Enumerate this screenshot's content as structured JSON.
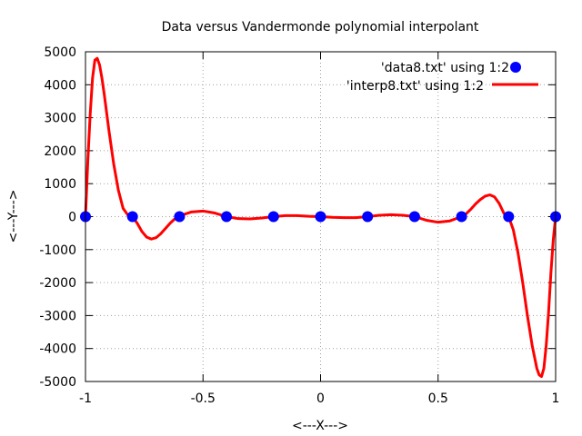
{
  "chart_data": {
    "type": "line",
    "title": "Data versus Vandermonde polynomial interpolant",
    "xlabel": "<---X--->",
    "ylabel": "<---Y--->",
    "xlim": [
      -1,
      1
    ],
    "ylim": [
      -5000,
      5000
    ],
    "xticks": [
      -1,
      -0.5,
      0,
      0.5,
      1
    ],
    "xtick_labels": [
      "-1",
      "-0.5",
      "0",
      "0.5",
      "1"
    ],
    "yticks": [
      -5000,
      -4000,
      -3000,
      -2000,
      -1000,
      0,
      1000,
      2000,
      3000,
      4000,
      5000
    ],
    "ytick_labels": [
      "-5000",
      "-4000",
      "-3000",
      "-2000",
      "-1000",
      "0",
      "1000",
      "2000",
      "3000",
      "4000",
      "5000"
    ],
    "grid": true,
    "legend_position": "top-right",
    "series": [
      {
        "name": "'data8.txt' using 1:2",
        "kind": "points",
        "color": "#0000ff",
        "x": [
          -1,
          -0.8,
          -0.6,
          -0.4,
          -0.2,
          0,
          0.2,
          0.4,
          0.6,
          0.8,
          1
        ],
        "y": [
          0,
          0,
          0,
          0,
          0,
          0,
          0,
          0,
          0,
          0,
          0
        ]
      },
      {
        "name": "'interp8.txt' using 1:2",
        "kind": "line",
        "color": "#ff0000",
        "x": [
          -1,
          -0.99,
          -0.98,
          -0.97,
          -0.96,
          -0.95,
          -0.94,
          -0.93,
          -0.92,
          -0.9,
          -0.88,
          -0.86,
          -0.84,
          -0.82,
          -0.8,
          -0.78,
          -0.76,
          -0.74,
          -0.72,
          -0.7,
          -0.68,
          -0.66,
          -0.64,
          -0.62,
          -0.6,
          -0.58,
          -0.55,
          -0.5,
          -0.45,
          -0.4,
          -0.35,
          -0.3,
          -0.25,
          -0.2,
          -0.15,
          -0.1,
          -0.05,
          0,
          0.05,
          0.1,
          0.15,
          0.2,
          0.25,
          0.3,
          0.35,
          0.4,
          0.45,
          0.5,
          0.55,
          0.6,
          0.62,
          0.64,
          0.66,
          0.68,
          0.7,
          0.72,
          0.74,
          0.76,
          0.78,
          0.8,
          0.82,
          0.84,
          0.86,
          0.88,
          0.9,
          0.92,
          0.93,
          0.94,
          0.95,
          0.96,
          0.97,
          0.98,
          0.99,
          1
        ],
        "y": [
          0,
          1700,
          3100,
          4200,
          4750,
          4800,
          4600,
          4200,
          3700,
          2600,
          1600,
          800,
          250,
          50,
          0,
          -200,
          -450,
          -620,
          -680,
          -640,
          -520,
          -360,
          -200,
          -70,
          0,
          70,
          140,
          170,
          110,
          0,
          -60,
          -70,
          -40,
          0,
          30,
          30,
          10,
          0,
          -20,
          -30,
          -30,
          0,
          40,
          60,
          40,
          0,
          -110,
          -170,
          -130,
          0,
          90,
          230,
          390,
          520,
          620,
          660,
          600,
          400,
          100,
          0,
          -400,
          -1100,
          -2000,
          -3000,
          -3900,
          -4600,
          -4800,
          -4850,
          -4600,
          -3900,
          -2900,
          -1700,
          -700,
          0
        ]
      }
    ]
  }
}
